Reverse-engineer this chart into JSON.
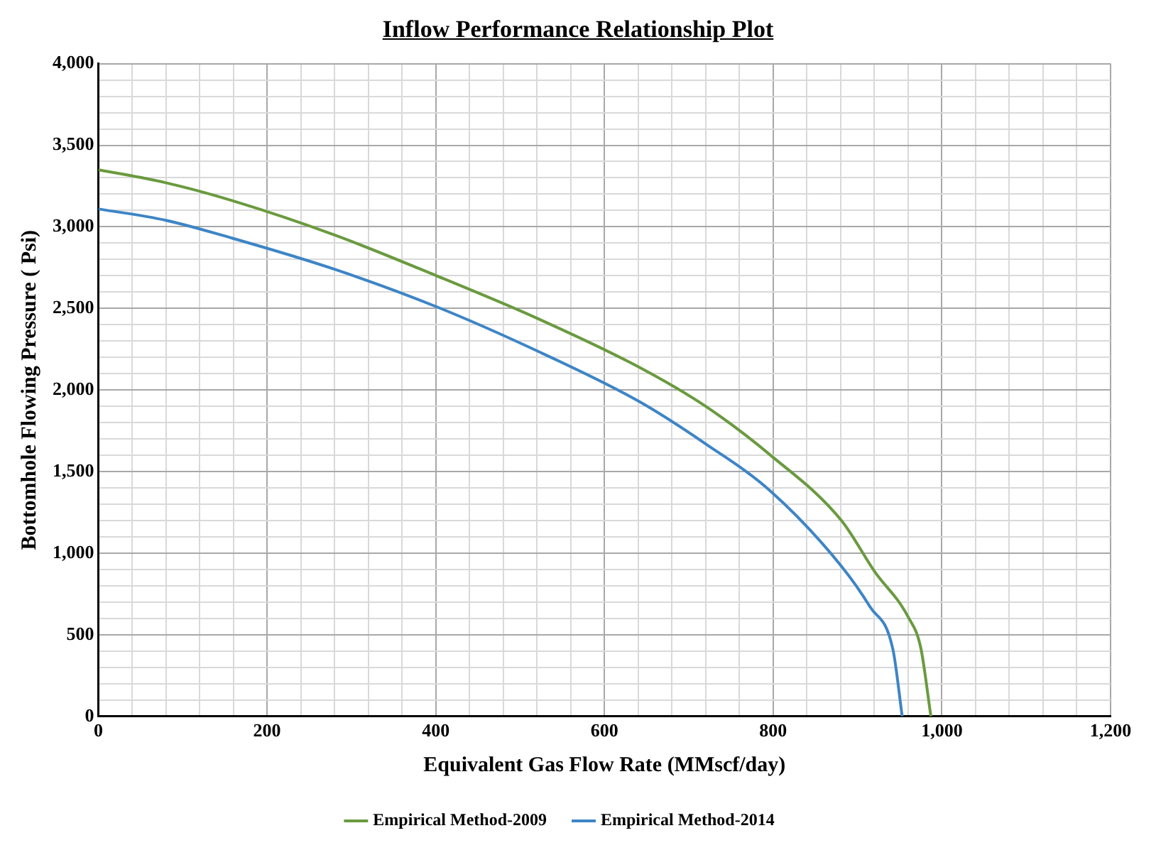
{
  "chart_data": {
    "type": "line",
    "title": "Inflow Performance Relationship Plot",
    "xlabel": "Equivalent Gas Flow Rate (MMscf/day)",
    "ylabel": "Bottomhole Flowing Pressure ( Psi)",
    "xlim": [
      0,
      1200
    ],
    "xticks": [
      0,
      {
        "value": 40,
        "label": null
      },
      {
        "value": 80,
        "label": null
      },
      {
        "value": 120,
        "label": null
      },
      {
        "value": 160,
        "label": null
      },
      200,
      {
        "value": 240,
        "label": null
      },
      {
        "value": 280,
        "label": null
      },
      {
        "value": 320,
        "label": null
      },
      {
        "value": 360,
        "label": null
      },
      400,
      {
        "value": 440,
        "label": null
      },
      {
        "value": 480,
        "label": null
      },
      {
        "value": 520,
        "label": null
      },
      {
        "value": 560,
        "label": null
      },
      600,
      {
        "value": 640,
        "label": null
      },
      {
        "value": 680,
        "label": null
      },
      {
        "value": 720,
        "label": null
      },
      {
        "value": 760,
        "label": null
      },
      800,
      {
        "value": 840,
        "label": null
      },
      {
        "value": 880,
        "label": null
      },
      {
        "value": 920,
        "label": null
      },
      {
        "value": 960,
        "label": null
      },
      {
        "value": 1000,
        "label": "1,000"
      },
      {
        "value": 1040,
        "label": null
      },
      {
        "value": 1080,
        "label": null
      },
      {
        "value": 1120,
        "label": null
      },
      {
        "value": 1160,
        "label": null
      },
      {
        "value": 1200,
        "label": "1,200"
      }
    ],
    "ylim": [
      0,
      4000
    ],
    "yticks": [
      0,
      {
        "value": 100,
        "label": null
      },
      {
        "value": 200,
        "label": null
      },
      {
        "value": 300,
        "label": null
      },
      {
        "value": 400,
        "label": null
      },
      500,
      {
        "value": 600,
        "label": null
      },
      {
        "value": 700,
        "label": null
      },
      {
        "value": 800,
        "label": null
      },
      {
        "value": 900,
        "label": null
      },
      {
        "value": 1000,
        "label": "1,000"
      },
      {
        "value": 1100,
        "label": null
      },
      {
        "value": 1200,
        "label": null
      },
      {
        "value": 1300,
        "label": null
      },
      {
        "value": 1400,
        "label": null
      },
      {
        "value": 1500,
        "label": "1,500"
      },
      {
        "value": 1600,
        "label": null
      },
      {
        "value": 1700,
        "label": null
      },
      {
        "value": 1800,
        "label": null
      },
      {
        "value": 1900,
        "label": null
      },
      {
        "value": 2000,
        "label": "2,000"
      },
      {
        "value": 2100,
        "label": null
      },
      {
        "value": 2200,
        "label": null
      },
      {
        "value": 2300,
        "label": null
      },
      {
        "value": 2400,
        "label": null
      },
      {
        "value": 2500,
        "label": "2,500"
      },
      {
        "value": 2600,
        "label": null
      },
      {
        "value": 2700,
        "label": null
      },
      {
        "value": 2800,
        "label": null
      },
      {
        "value": 2900,
        "label": null
      },
      {
        "value": 3000,
        "label": "3,000"
      },
      {
        "value": 3100,
        "label": null
      },
      {
        "value": 3200,
        "label": null
      },
      {
        "value": 3300,
        "label": null
      },
      {
        "value": 3400,
        "label": null
      },
      {
        "value": 3500,
        "label": "3,500"
      },
      {
        "value": 3600,
        "label": null
      },
      {
        "value": 3700,
        "label": null
      },
      {
        "value": 3800,
        "label": null
      },
      {
        "value": 3900,
        "label": null
      },
      {
        "value": 4000,
        "label": "4,000"
      }
    ],
    "grid": true,
    "legend": "bottom",
    "marker": "none",
    "line_style": "solid",
    "series": [
      {
        "name": "Empirical Method-2009",
        "color": "#6a9a3f",
        "x": [
          0,
          80,
          159,
          280,
          401,
          520,
          641,
          720,
          797,
          881,
          920,
          960,
          975,
          987
        ],
        "values": [
          3350,
          3270,
          3160,
          2950,
          2700,
          2440,
          2140,
          1900,
          1600,
          1200,
          890,
          610,
          420,
          0
        ]
      },
      {
        "name": "Empirical Method-2014",
        "color": "#3d85c6",
        "x": [
          0,
          80,
          159,
          280,
          401,
          520,
          641,
          720,
          797,
          881,
          915,
          942,
          953
        ],
        "values": [
          3110,
          3040,
          2930,
          2740,
          2510,
          2240,
          1930,
          1670,
          1380,
          920,
          670,
          410,
          0
        ]
      }
    ]
  }
}
